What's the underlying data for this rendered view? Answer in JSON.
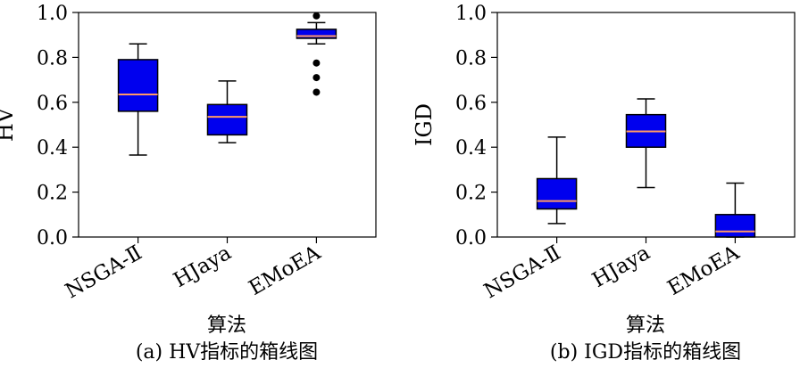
{
  "colors": {
    "box_fill": "#0000ee",
    "median": "#ff9966",
    "line": "#000000"
  },
  "chart_data": [
    {
      "type": "box",
      "caption": "(a) HV指标的箱线图",
      "xlabel": "算法",
      "ylabel": "HV",
      "ylim": [
        0.0,
        1.0
      ],
      "yticks": [
        "0.0",
        "0.2",
        "0.4",
        "0.6",
        "0.8",
        "1.0"
      ],
      "categories": [
        "NSGA-Ⅱ",
        "HJaya",
        "EMoEA"
      ],
      "boxes": [
        {
          "whislo": 0.365,
          "q1": 0.56,
          "med": 0.635,
          "q3": 0.79,
          "whishi": 0.86,
          "fliers": []
        },
        {
          "whislo": 0.42,
          "q1": 0.455,
          "med": 0.535,
          "q3": 0.59,
          "whishi": 0.695,
          "fliers": []
        },
        {
          "whislo": 0.86,
          "q1": 0.885,
          "med": 0.895,
          "q3": 0.925,
          "whishi": 0.955,
          "fliers": [
            0.985,
            0.775,
            0.71,
            0.645
          ]
        }
      ]
    },
    {
      "type": "box",
      "caption": "(b) IGD指标的箱线图",
      "xlabel": "算法",
      "ylabel": "IGD",
      "ylim": [
        0.0,
        1.0
      ],
      "yticks": [
        "0.0",
        "0.2",
        "0.4",
        "0.6",
        "0.8",
        "1.0"
      ],
      "categories": [
        "NSGA-Ⅱ",
        "HJaya",
        "EMoEA"
      ],
      "boxes": [
        {
          "whislo": 0.06,
          "q1": 0.125,
          "med": 0.16,
          "q3": 0.26,
          "whishi": 0.445,
          "fliers": []
        },
        {
          "whislo": 0.22,
          "q1": 0.4,
          "med": 0.47,
          "q3": 0.545,
          "whishi": 0.615,
          "fliers": []
        },
        {
          "whislo": 0.0,
          "q1": 0.0,
          "med": 0.025,
          "q3": 0.1,
          "whishi": 0.24,
          "fliers": []
        }
      ]
    }
  ]
}
